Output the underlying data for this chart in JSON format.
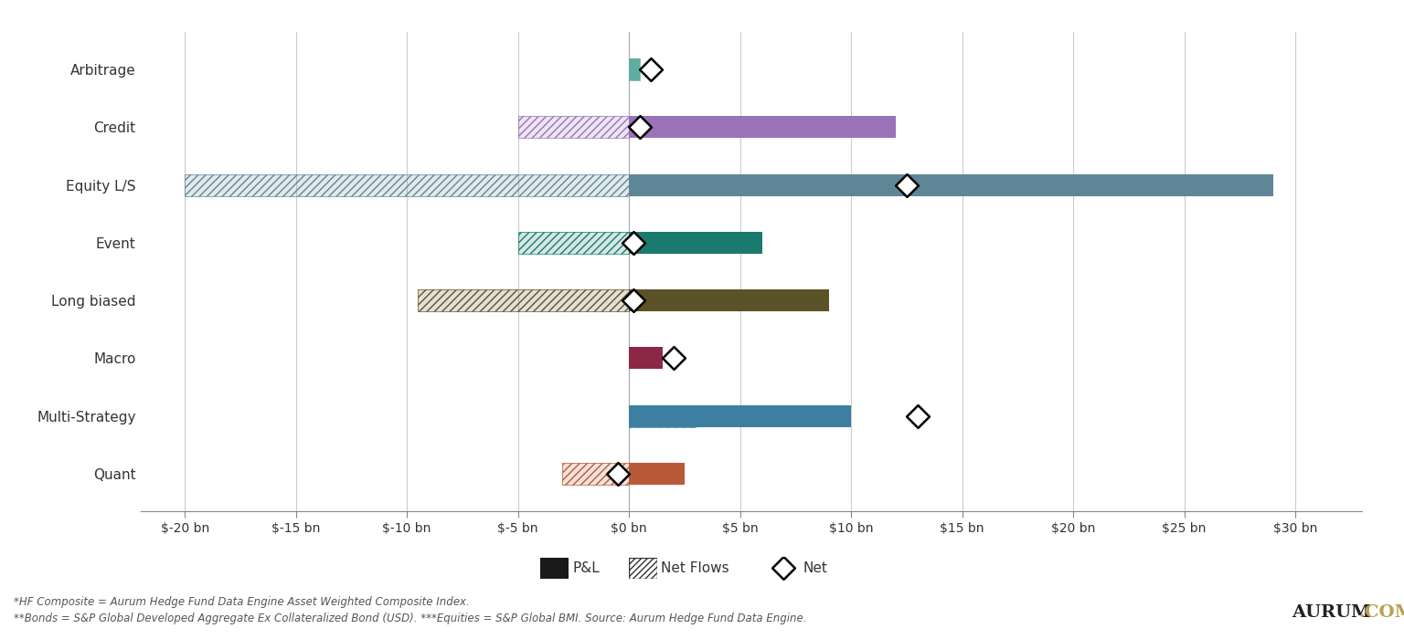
{
  "categories": [
    "Arbitrage",
    "Credit",
    "Equity L/S",
    "Event",
    "Long biased",
    "Macro",
    "Multi-Strategy",
    "Quant"
  ],
  "pl_values": [
    0.5,
    12.0,
    29.0,
    6.0,
    9.0,
    1.5,
    10.0,
    2.5
  ],
  "net_flows_values": [
    0.5,
    -5.0,
    -20.0,
    -5.0,
    -9.5,
    0.0,
    3.0,
    -3.0
  ],
  "net_values": [
    1.0,
    0.5,
    12.5,
    0.2,
    0.2,
    2.0,
    13.0,
    -0.5
  ],
  "pl_colors": [
    "#5eada0",
    "#9b72b8",
    "#5f8696",
    "#1a7a6e",
    "#5c5227",
    "#8b2846",
    "#3d7fa0",
    "#b85a38"
  ],
  "nf_colors": [
    "#5eada0",
    "#9b72b8",
    "#5f8696",
    "#1a7a6e",
    "#5c5227",
    "#8b2846",
    "#3d7fa0",
    "#b85a38"
  ],
  "xlim": [
    -22,
    33
  ],
  "xticks": [
    -20,
    -15,
    -10,
    -5,
    0,
    5,
    10,
    15,
    20,
    25,
    30
  ],
  "xtick_labels": [
    "$-20 bn",
    "$-15 bn",
    "$-10 bn",
    "$-5 bn",
    "$0 bn",
    "$5 bn",
    "$10 bn",
    "$15 bn",
    "$20 bn",
    "$25 bn",
    "$30 bn"
  ],
  "bar_height": 0.38,
  "background_color": "#ffffff",
  "grid_color": "#cccccc",
  "text_color": "#333333",
  "footnote1": "*HF Composite = Aurum Hedge Fund Data Engine Asset Weighted Composite Index.",
  "footnote2": "**Bonds = S&P Global Developed Aggregate Ex Collateralized Bond (USD). ***Equities = S&P Global BMI. Source: Aurum Hedge Fund Data Engine."
}
